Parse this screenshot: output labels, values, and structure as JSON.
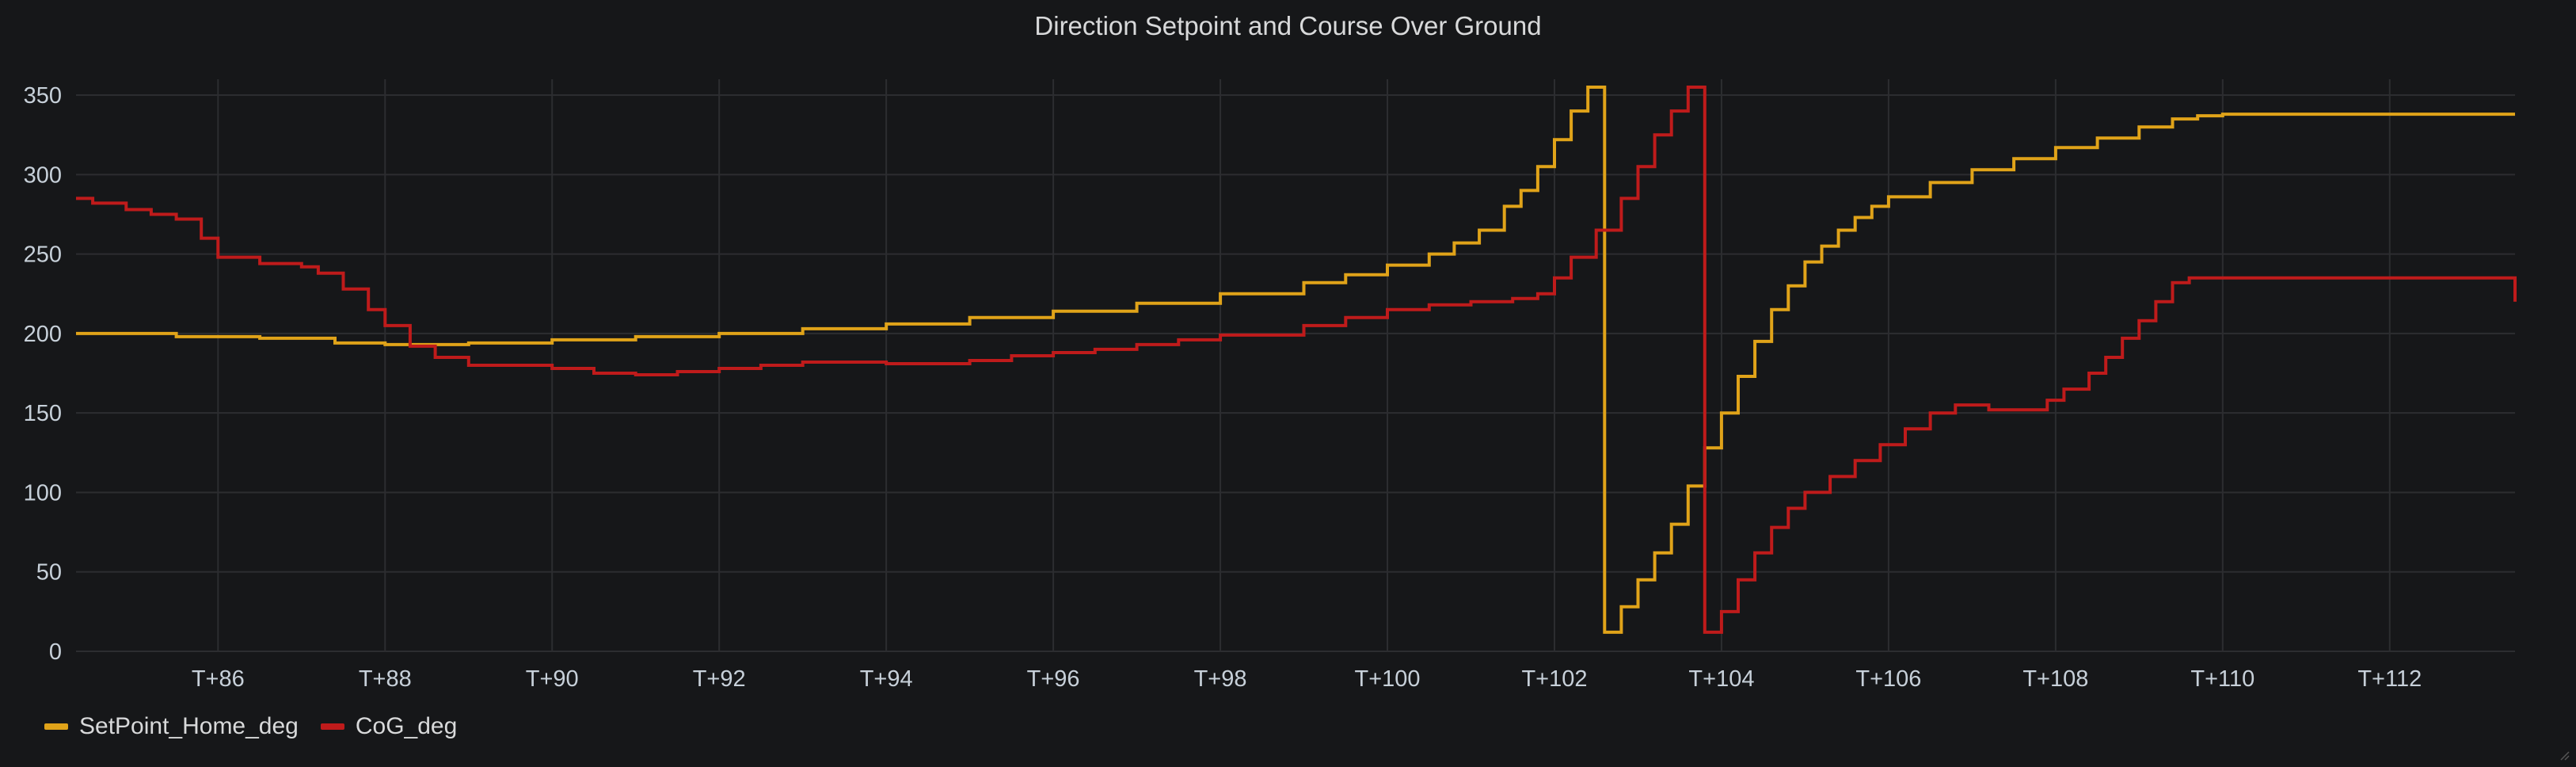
{
  "chart_data": {
    "type": "line",
    "title": "Direction Setpoint and Course Over Ground",
    "xlabel": "",
    "ylabel": "",
    "xlim": [
      84.3,
      113.5
    ],
    "ylim": [
      0,
      360
    ],
    "y_ticks": [
      0,
      50,
      100,
      150,
      200,
      250,
      300,
      350
    ],
    "x_ticks": [
      86,
      88,
      90,
      92,
      94,
      96,
      98,
      100,
      102,
      104,
      106,
      108,
      110,
      112
    ],
    "x_tick_labels": [
      "T+86",
      "T+88",
      "T+90",
      "T+92",
      "T+94",
      "T+96",
      "T+98",
      "T+100",
      "T+102",
      "T+104",
      "T+106",
      "T+108",
      "T+110",
      "T+112"
    ],
    "grid": true,
    "legend_position": "bottom-left",
    "series": [
      {
        "name": "SetPoint_Home_deg",
        "color": "#e0a319",
        "step": true,
        "x": [
          84.3,
          85.5,
          86.5,
          87.4,
          88.0,
          89.0,
          90.0,
          91.0,
          92.0,
          93.0,
          94.0,
          95.0,
          96.0,
          97.0,
          98.0,
          99.0,
          99.5,
          100.0,
          100.5,
          100.8,
          101.1,
          101.4,
          101.6,
          101.8,
          102.0,
          102.2,
          102.4,
          102.6,
          102.8,
          103.0,
          103.2,
          103.4,
          103.6,
          103.8,
          104.0,
          104.2,
          104.4,
          104.6,
          104.8,
          105.0,
          105.2,
          105.4,
          105.6,
          105.8,
          106.0,
          106.5,
          107.0,
          107.5,
          108.0,
          108.5,
          109.0,
          109.4,
          109.7,
          110.0,
          113.5
        ],
        "y": [
          200,
          198,
          197,
          194,
          193,
          194,
          196,
          198,
          200,
          203,
          206,
          210,
          214,
          219,
          225,
          232,
          237,
          243,
          250,
          257,
          265,
          280,
          290,
          305,
          322,
          340,
          355,
          12,
          28,
          45,
          62,
          80,
          104,
          128,
          150,
          173,
          195,
          215,
          230,
          245,
          255,
          265,
          273,
          280,
          286,
          295,
          303,
          310,
          317,
          323,
          330,
          335,
          337,
          338,
          338
        ]
      },
      {
        "name": "CoG_deg",
        "color": "#bf1b1b",
        "step": true,
        "x": [
          84.3,
          84.5,
          84.9,
          85.2,
          85.5,
          85.8,
          86.0,
          86.5,
          87.0,
          87.2,
          87.5,
          87.8,
          88.0,
          88.3,
          88.6,
          89.0,
          89.5,
          90.0,
          90.5,
          91.0,
          91.5,
          92.0,
          92.5,
          93.0,
          94.0,
          95.0,
          95.5,
          96.0,
          96.5,
          97.0,
          97.5,
          98.0,
          99.0,
          99.5,
          100.0,
          100.5,
          101.0,
          101.5,
          101.8,
          102.0,
          102.2,
          102.5,
          102.8,
          103.0,
          103.2,
          103.4,
          103.6,
          103.8,
          104.0,
          104.2,
          104.4,
          104.6,
          104.8,
          105.0,
          105.3,
          105.6,
          105.9,
          106.2,
          106.5,
          106.8,
          107.2,
          107.6,
          107.9,
          108.1,
          108.4,
          108.6,
          108.8,
          109.0,
          109.2,
          109.4,
          109.6,
          113.5
        ],
        "y": [
          285,
          282,
          278,
          275,
          272,
          260,
          248,
          244,
          242,
          238,
          228,
          215,
          205,
          192,
          185,
          180,
          180,
          178,
          175,
          174,
          176,
          178,
          180,
          182,
          181,
          183,
          186,
          188,
          190,
          193,
          196,
          199,
          205,
          210,
          215,
          218,
          220,
          222,
          225,
          235,
          248,
          265,
          285,
          305,
          325,
          340,
          355,
          12,
          25,
          45,
          62,
          78,
          90,
          100,
          110,
          120,
          130,
          140,
          150,
          155,
          152,
          152,
          158,
          165,
          175,
          185,
          197,
          208,
          220,
          232,
          235,
          220
        ]
      }
    ]
  }
}
